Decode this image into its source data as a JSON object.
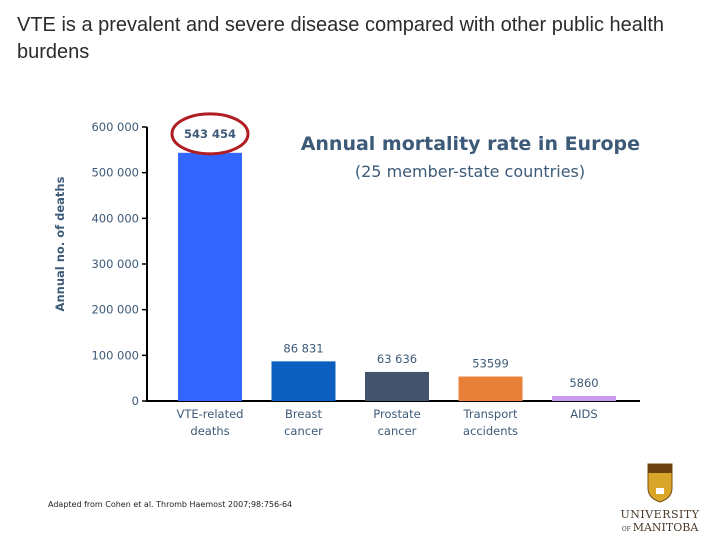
{
  "slide_title": "VTE is a prevalent and severe disease compared with other public health burdens",
  "source": "Adapted from Cohen et al. Thromb Haemost 2007;98:756-64",
  "logo": {
    "line1": "UNIVERSITY",
    "prefix": "OF",
    "line2": "MANITOBA"
  },
  "chart_data": {
    "type": "bar",
    "title": "Annual mortality rate in Europe",
    "subtitle": "(25 member-state countries)",
    "ylabel": "Annual no. of deaths",
    "xlabel": "",
    "ylim": [
      0,
      600000
    ],
    "yticks": [
      0,
      100000,
      200000,
      300000,
      400000,
      500000,
      600000
    ],
    "ytick_labels": [
      "0",
      "100 000",
      "200 000",
      "300 000",
      "400 000",
      "500 000",
      "600 000"
    ],
    "grid": false,
    "categories": [
      [
        "VTE-related",
        "deaths"
      ],
      [
        "Breast",
        "cancer"
      ],
      [
        "Prostate",
        "cancer"
      ],
      [
        "Transport",
        "accidents"
      ],
      [
        "AIDS"
      ]
    ],
    "values": [
      543454,
      86831,
      63636,
      53599,
      5860
    ],
    "data_labels": [
      "543 454",
      "86 831",
      "63 636",
      "53599",
      "5860"
    ],
    "colors": [
      "#3366ff",
      "#0b5fbf",
      "#42536b",
      "#e8803a",
      "#c99af0"
    ],
    "highlight": {
      "index": 0,
      "shape": "ellipse",
      "color": "#b01e23"
    }
  }
}
